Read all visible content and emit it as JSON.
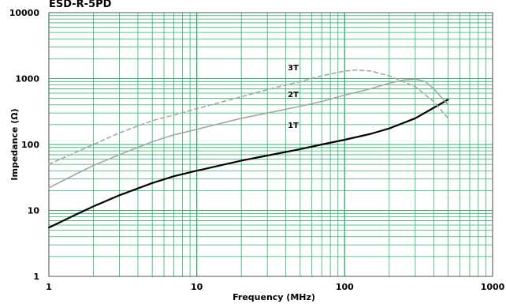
{
  "chart_data": {
    "type": "line",
    "title": "ESD-R-5PD",
    "xlabel": "Frequency (MHz)",
    "ylabel": "Impedance (Ω)",
    "xscale": "log",
    "yscale": "log",
    "xlim": [
      1,
      1000
    ],
    "ylim": [
      1,
      10000
    ],
    "x_ticks": [
      "1",
      "10",
      "100",
      "1000"
    ],
    "y_ticks": [
      "1",
      "10",
      "100",
      "1000",
      "10000"
    ],
    "grid": true,
    "series": [
      {
        "name": "1T",
        "color": "#000000",
        "style": "solid",
        "x": [
          1,
          1.5,
          2,
          3,
          5,
          7,
          10,
          20,
          30,
          50,
          70,
          100,
          150,
          200,
          300,
          400,
          500
        ],
        "y": [
          5.5,
          8.5,
          11.5,
          17,
          26,
          33,
          40,
          57,
          68,
          85,
          100,
          118,
          145,
          175,
          250,
          360,
          480
        ]
      },
      {
        "name": "2T",
        "color": "#a6a6a6",
        "style": "solid",
        "x": [
          1,
          1.5,
          2,
          3,
          5,
          7,
          10,
          20,
          30,
          50,
          70,
          100,
          150,
          200,
          250,
          300,
          350,
          400,
          450,
          500
        ],
        "y": [
          22,
          35,
          48,
          70,
          110,
          140,
          170,
          250,
          300,
          380,
          450,
          560,
          700,
          850,
          950,
          980,
          900,
          700,
          520,
          400
        ]
      },
      {
        "name": "3T",
        "color": "#a6a6a6",
        "style": "dashed",
        "x": [
          1,
          1.5,
          2,
          3,
          5,
          7,
          10,
          20,
          30,
          50,
          70,
          100,
          120,
          150,
          200,
          300,
          400,
          500
        ],
        "y": [
          50,
          75,
          100,
          150,
          230,
          280,
          350,
          530,
          680,
          900,
          1100,
          1300,
          1350,
          1300,
          1100,
          750,
          450,
          250
        ]
      }
    ],
    "series_labels": [
      "1T",
      "2T",
      "3T"
    ]
  }
}
